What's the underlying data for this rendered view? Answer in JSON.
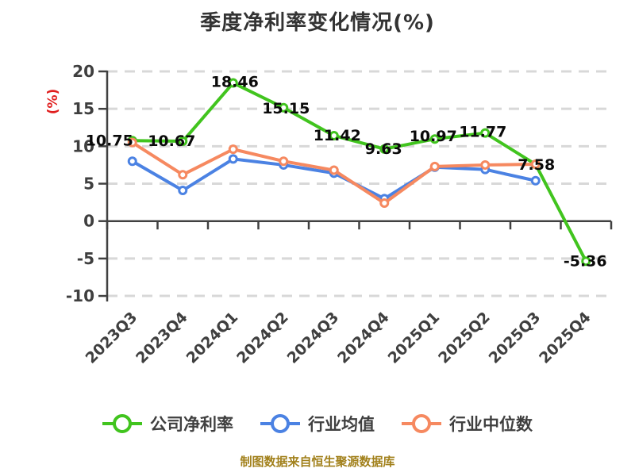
{
  "title": "季度净利率变化情况(%)",
  "footer": "制图数据来自恒生聚源数据库",
  "colors": {
    "background": "#ffffff",
    "title": "#333333",
    "axis": "#404040",
    "grid": "#d8d8d8",
    "tick_label": "#3f3f3f",
    "point_label": "#0a0a0a",
    "y_axis_title": "#e01e1e",
    "footer": "#a2811c",
    "series_green": "#41c41e",
    "series_blue": "#4b82e3",
    "series_orange": "#f68960"
  },
  "chart_data": {
    "type": "line",
    "title": "季度净利率变化情况(%)",
    "ylabel": "(%)",
    "ylabel_color": "#e01e1e",
    "ylim": [
      -10,
      20
    ],
    "yticks": [
      20,
      15,
      10,
      5,
      0,
      -5,
      -10
    ],
    "grid": "horizontal dashed gridlines",
    "legend_position": "bottom",
    "x_tick_label_rotation": -45,
    "categories": [
      "2023Q3",
      "2023Q4",
      "2024Q1",
      "2024Q2",
      "2024Q3",
      "2024Q4",
      "2025Q1",
      "2025Q2",
      "2025Q3",
      "2025Q4"
    ],
    "series": [
      {
        "id": "company-net-margin",
        "name": "公司净利率",
        "color": "#41c41e",
        "point_labels": true,
        "values": [
          10.75,
          10.67,
          18.46,
          15.15,
          11.42,
          9.63,
          10.97,
          11.77,
          7.58,
          -5.36
        ]
      },
      {
        "id": "industry-mean",
        "name": "行业均值",
        "color": "#4b82e3",
        "point_labels": false,
        "values": [
          8.0,
          4.1,
          8.3,
          7.5,
          6.4,
          3.0,
          7.2,
          6.9,
          5.4,
          null
        ]
      },
      {
        "id": "industry-median",
        "name": "行业中位数",
        "color": "#f68960",
        "point_labels": false,
        "values": [
          10.5,
          6.2,
          9.6,
          8.0,
          6.8,
          2.4,
          7.3,
          7.5,
          7.6,
          null
        ]
      }
    ]
  }
}
